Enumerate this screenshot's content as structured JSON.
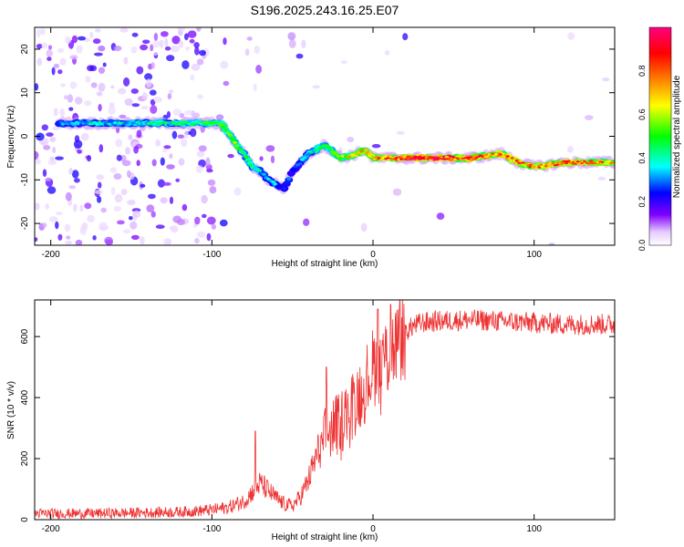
{
  "chart_data": [
    {
      "type": "heatmap",
      "title": "S196.2025.243.16.25.E07",
      "xlabel": "Height of straight line (km)",
      "ylabel": "Frequency (Hz)",
      "xlim": [
        -210,
        150
      ],
      "ylim": [
        -25,
        25
      ],
      "x_ticks": [
        -200,
        -100,
        0,
        100
      ],
      "y_ticks": [
        20,
        10,
        0,
        -10,
        -20
      ],
      "colorbar": {
        "label": "Normalized spectral amplitude",
        "range": [
          0,
          1
        ],
        "ticks": [
          "0.0",
          "0.2",
          "0.4",
          "0.6",
          "0.8"
        ],
        "colors": [
          "#ffffff",
          "#8000ff",
          "#0000ff",
          "#00ffff",
          "#00ff00",
          "#ffff00",
          "#ff8000",
          "#ff0000",
          "#ff0080"
        ]
      },
      "ridge": {
        "heights_km": [
          -190,
          -170,
          -150,
          -130,
          -110,
          -95,
          -90,
          -85,
          -80,
          -75,
          -70,
          -65,
          -60,
          -55,
          -50,
          -45,
          -40,
          -35,
          -30,
          -20,
          -10,
          -5,
          0,
          10,
          20,
          40,
          60,
          80,
          90,
          100,
          120,
          140,
          150
        ],
        "frequencies_hz": [
          3,
          3,
          3,
          3,
          3,
          3,
          1,
          -2,
          -4,
          -7,
          -8,
          -10,
          -11,
          -12,
          -8,
          -6,
          -4,
          -3,
          -2,
          -5,
          -4,
          -3,
          -5,
          -5,
          -5,
          -5,
          -5,
          -4,
          -6,
          -7,
          -6,
          -6,
          -6
        ],
        "amplitudes": [
          0.35,
          0.4,
          0.4,
          0.45,
          0.45,
          0.55,
          0.6,
          0.55,
          0.5,
          0.45,
          0.4,
          0.4,
          0.35,
          0.3,
          0.3,
          0.35,
          0.4,
          0.45,
          0.5,
          0.6,
          0.7,
          0.7,
          0.75,
          0.85,
          0.95,
          0.95,
          0.9,
          0.8,
          0.85,
          0.8,
          0.85,
          0.8,
          0.75
        ]
      }
    },
    {
      "type": "line",
      "xlabel": "Height of straight line (km)",
      "ylabel": "SNR (10 * v/v)",
      "xlim": [
        -210,
        150
      ],
      "ylim": [
        0,
        720
      ],
      "x_ticks": [
        -200,
        -100,
        0,
        100
      ],
      "y_ticks": [
        0,
        200,
        400,
        600
      ],
      "series": [
        {
          "name": "SNR",
          "color": "#ee3333",
          "x": [
            -210,
            -180,
            -150,
            -120,
            -110,
            -100,
            -90,
            -80,
            -75,
            -70,
            -65,
            -60,
            -55,
            -50,
            -45,
            -40,
            -35,
            -30,
            -25,
            -20,
            -15,
            -10,
            -5,
            0,
            5,
            10,
            15,
            20,
            25,
            30,
            40,
            60,
            80,
            100,
            120,
            150
          ],
          "y": [
            20,
            20,
            22,
            25,
            28,
            32,
            40,
            60,
            90,
            120,
            95,
            70,
            50,
            45,
            75,
            130,
            210,
            270,
            300,
            320,
            360,
            400,
            440,
            500,
            520,
            540,
            580,
            615,
            635,
            645,
            650,
            655,
            650,
            645,
            640,
            640
          ]
        }
      ],
      "peaks": {
        "x": [
          -73,
          -29,
          3,
          11
        ],
        "y": [
          290,
          500,
          690,
          705
        ]
      }
    }
  ]
}
